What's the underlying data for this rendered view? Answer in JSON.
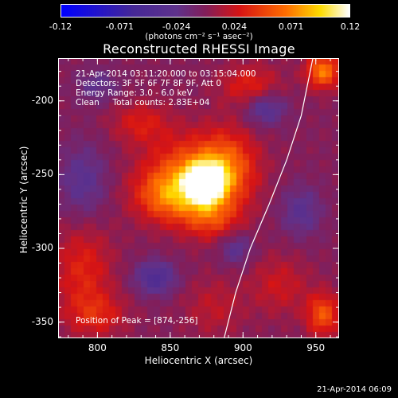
{
  "colorbar": {
    "tick_labels": [
      "-0.12",
      "-0.071",
      "-0.024",
      "0.024",
      "0.071",
      "0.12"
    ],
    "tick_values": [
      -0.12,
      -0.071,
      -0.024,
      0.024,
      0.071,
      0.12
    ],
    "unit": "(photons cm⁻² s⁻¹ asec⁻²)"
  },
  "chart_data": {
    "type": "heatmap",
    "title": "Reconstructed RHESSI Image",
    "xlabel": "Heliocentric X (arcsec)",
    "ylabel": "Heliocentric Y (arcsec)",
    "xlim": [
      773,
      966
    ],
    "ylim": [
      -361,
      -171
    ],
    "x_ticks": [
      800,
      850,
      900,
      950
    ],
    "y_ticks": [
      -200,
      -250,
      -300,
      -350
    ],
    "value_range": [
      -0.12,
      0.12
    ],
    "colormap": "blue-purple-red-yellow-white",
    "peak": {
      "x": 874,
      "y": -256
    },
    "limb_curve": [
      [
        887,
        -361
      ],
      [
        895,
        -330
      ],
      [
        905,
        -300
      ],
      [
        918,
        -270
      ],
      [
        930,
        -240
      ],
      [
        940,
        -210
      ],
      [
        948,
        -171
      ]
    ],
    "blobs": [
      {
        "x": 874,
        "y": -256,
        "sx": 9,
        "sy": 9,
        "v": 0.12
      },
      {
        "x": 865,
        "y": -250,
        "sx": 22,
        "sy": 18,
        "v": 0.06
      },
      {
        "x": 848,
        "y": -265,
        "sx": 16,
        "sy": 12,
        "v": 0.05
      },
      {
        "x": 890,
        "y": -245,
        "sx": 14,
        "sy": 18,
        "v": 0.045
      },
      {
        "x": 878,
        "y": -280,
        "sx": 14,
        "sy": 10,
        "v": 0.04
      },
      {
        "x": 830,
        "y": -215,
        "sx": 14,
        "sy": 10,
        "v": 0.03
      },
      {
        "x": 905,
        "y": -190,
        "sx": 14,
        "sy": 10,
        "v": 0.035
      },
      {
        "x": 790,
        "y": -315,
        "sx": 14,
        "sy": 22,
        "v": 0.035
      },
      {
        "x": 800,
        "y": -345,
        "sx": 14,
        "sy": 10,
        "v": 0.03
      },
      {
        "x": 955,
        "y": -180,
        "sx": 8,
        "sy": 8,
        "v": 0.07
      },
      {
        "x": 955,
        "y": -345,
        "sx": 8,
        "sy": 10,
        "v": 0.055
      },
      {
        "x": 925,
        "y": -325,
        "sx": 14,
        "sy": 14,
        "v": 0.025
      },
      {
        "x": 880,
        "y": -340,
        "sx": 14,
        "sy": 14,
        "v": 0.02
      },
      {
        "x": 840,
        "y": -320,
        "sx": 10,
        "sy": 8,
        "v": -0.045
      },
      {
        "x": 895,
        "y": -300,
        "sx": 8,
        "sy": 8,
        "v": -0.03
      },
      {
        "x": 915,
        "y": -205,
        "sx": 10,
        "sy": 8,
        "v": -0.04
      },
      {
        "x": 790,
        "y": -255,
        "sx": 12,
        "sy": 18,
        "v": -0.03
      },
      {
        "x": 800,
        "y": -190,
        "sx": 10,
        "sy": 8,
        "v": -0.025
      },
      {
        "x": 940,
        "y": -275,
        "sx": 10,
        "sy": 12,
        "v": -0.03
      }
    ]
  },
  "info": {
    "time_range": "21-Apr-2014 03:11:20.000 to 03:15:04.000",
    "detectors": "Detectors: 3F 5F 6F 7F 8F 9F, Att 0",
    "energy": "Energy Range: 3.0 - 6.0 keV",
    "clean": "Clean     Total counts: 2.83E+04",
    "peak": "Position of Peak = [874,-256]"
  },
  "axes": {
    "y_tick_labels": [
      "-200",
      "-250",
      "-300",
      "-350"
    ],
    "x_tick_labels": [
      "800",
      "850",
      "900",
      "950"
    ]
  },
  "footer": {
    "date": "21-Apr-2014 06:09"
  }
}
